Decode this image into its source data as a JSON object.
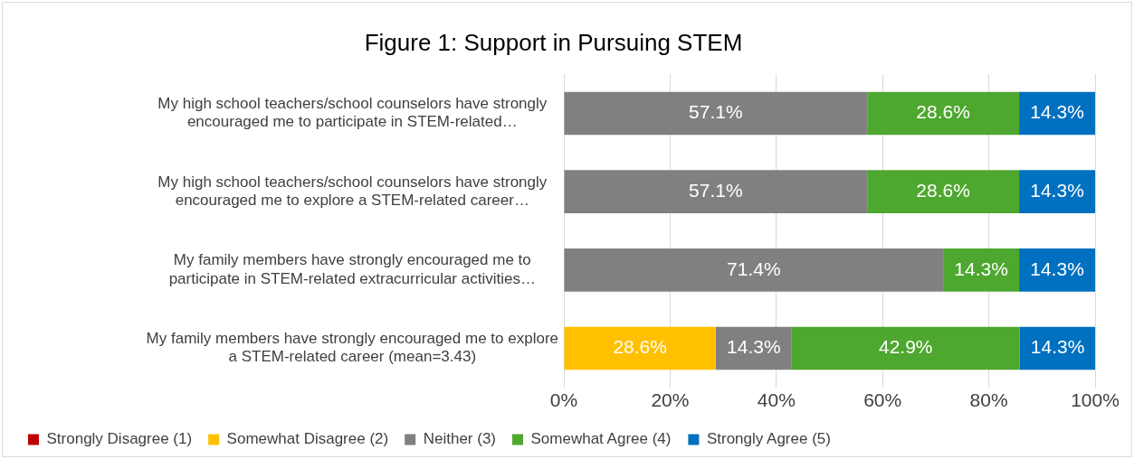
{
  "chart_data": {
    "type": "bar",
    "orientation": "horizontal",
    "stacked": true,
    "title": "Figure 1: Support in Pursuing STEM",
    "categories": [
      "My high school teachers/school counselors have strongly encouraged me to participate in STEM-related…",
      "My high school teachers/school counselors have strongly encouraged me to explore a STEM-related career…",
      "My family members have strongly encouraged me to participate in STEM-related extracurricular activities…",
      "My family members have strongly encouraged me to explore a STEM-related career (mean=3.43)"
    ],
    "series": [
      {
        "name": "Strongly Disagree (1)",
        "color": "#c00000",
        "values": [
          null,
          null,
          null,
          null
        ]
      },
      {
        "name": "Somewhat Disagree (2)",
        "color": "#ffc000",
        "values": [
          null,
          null,
          null,
          28.6
        ],
        "value_labels": [
          null,
          null,
          null,
          "28.6%"
        ]
      },
      {
        "name": "Neither (3)",
        "color": "#808080",
        "values": [
          57.1,
          57.1,
          71.4,
          14.3
        ],
        "value_labels": [
          "57.1%",
          "57.1%",
          "71.4%",
          "14.3%"
        ]
      },
      {
        "name": "Somewhat Agree (4)",
        "color": "#4ea72e",
        "values": [
          28.6,
          28.6,
          14.3,
          42.9
        ],
        "value_labels": [
          "28.6%",
          "28.6%",
          "14.3%",
          "42.9%"
        ]
      },
      {
        "name": "Strongly Agree (5)",
        "color": "#0070c0",
        "values": [
          14.3,
          14.3,
          14.3,
          14.3
        ],
        "value_labels": [
          "14.3%",
          "14.3%",
          "14.3%",
          "14.3%"
        ]
      }
    ],
    "xlim": [
      0,
      100
    ],
    "xticks": [
      {
        "value": 0,
        "label": "0%"
      },
      {
        "value": 20,
        "label": "20%"
      },
      {
        "value": 40,
        "label": "40%"
      },
      {
        "value": 60,
        "label": "60%"
      },
      {
        "value": 80,
        "label": "80%"
      },
      {
        "value": 100,
        "label": "100%"
      }
    ],
    "grid": "x",
    "legend": "bottom"
  }
}
